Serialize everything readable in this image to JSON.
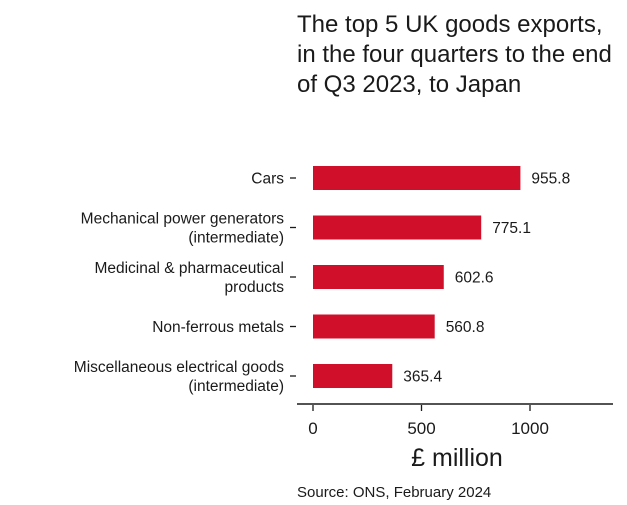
{
  "chart_data": {
    "type": "bar",
    "orientation": "horizontal",
    "title": "The top 5 UK goods exports, in the four quarters to the end of Q3 2023, to Japan",
    "categories": [
      [
        "Cars"
      ],
      [
        "Mechanical power generators",
        "(intermediate)"
      ],
      [
        "Medicinal & pharmaceutical",
        "products"
      ],
      [
        "Non-ferrous metals"
      ],
      [
        "Miscellaneous electrical goods",
        "(intermediate)"
      ]
    ],
    "values": [
      955.8,
      775.1,
      602.6,
      560.8,
      365.4
    ],
    "value_labels": [
      "955.8",
      "775.1",
      "602.6",
      "560.8",
      "365.4"
    ],
    "xlabel": "£ million",
    "ylabel": "",
    "xlim": [
      0,
      1400
    ],
    "x_ticks": [
      0,
      500,
      1000
    ],
    "x_tick_labels": [
      "0",
      "500",
      "1000"
    ],
    "grid": false,
    "legend": "none",
    "bar_color": "#d0102a",
    "source": "Source: ONS, February 2024"
  }
}
